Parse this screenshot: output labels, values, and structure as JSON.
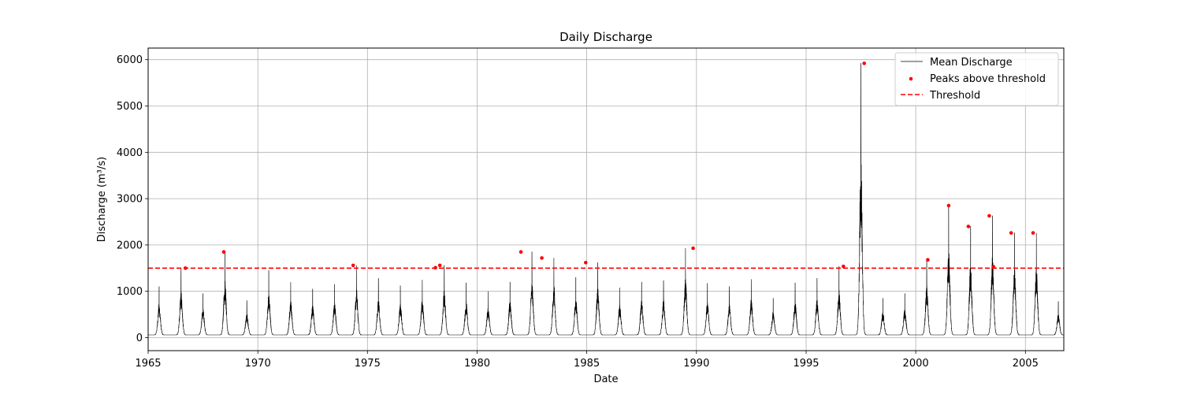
{
  "chart_data": {
    "type": "line",
    "title": "Daily Discharge",
    "xlabel": "Date",
    "ylabel": "Discharge (m³/s)",
    "xlim": [
      1965.0,
      2006.75
    ],
    "ylim": [
      -280,
      6250
    ],
    "xticks": [
      1965,
      1970,
      1975,
      1980,
      1985,
      1990,
      1995,
      2000,
      2005
    ],
    "yticks": [
      0,
      1000,
      2000,
      3000,
      4000,
      5000,
      6000
    ],
    "grid": true,
    "legend_position": "top-right",
    "threshold": 1500,
    "annual_hydrograph": {
      "years": [
        1965,
        1966,
        1967,
        1968,
        1969,
        1970,
        1971,
        1972,
        1973,
        1974,
        1975,
        1976,
        1977,
        1978,
        1979,
        1980,
        1981,
        1982,
        1983,
        1984,
        1985,
        1986,
        1987,
        1988,
        1989,
        1990,
        1991,
        1992,
        1993,
        1994,
        1995,
        1996,
        1997,
        1998,
        1999,
        2000,
        2001,
        2002,
        2003,
        2004,
        2005,
        2006
      ],
      "seasonal_peak": [
        1100,
        1500,
        950,
        1850,
        800,
        1450,
        1200,
        1050,
        1150,
        1560,
        1280,
        1120,
        1250,
        1560,
        1180,
        1000,
        1200,
        1850,
        1720,
        1300,
        1620,
        1080,
        1200,
        1230,
        1930,
        1170,
        1100,
        1260,
        850,
        1180,
        1280,
        1540,
        5920,
        850,
        950,
        1680,
        2850,
        2400,
        2630,
        2260,
        2260,
        780
      ],
      "baseflow": [
        60,
        60,
        60,
        60,
        60,
        60,
        60,
        60,
        60,
        60,
        60,
        60,
        60,
        60,
        60,
        60,
        60,
        60,
        60,
        60,
        60,
        60,
        60,
        60,
        60,
        60,
        60,
        60,
        60,
        60,
        60,
        60,
        60,
        60,
        60,
        60,
        60,
        60,
        60,
        60,
        60,
        60
      ]
    },
    "series": [
      {
        "name": "Mean Discharge",
        "color": "#000000",
        "style": "line"
      },
      {
        "name": "Peaks above threshold",
        "color": "#ff0000",
        "style": "points",
        "x": [
          1966.7,
          1968.45,
          1974.35,
          1978.1,
          1978.3,
          1982.0,
          1982.95,
          1984.95,
          1989.85,
          1996.7,
          1997.65,
          2000.55,
          2001.5,
          2002.4,
          2003.35,
          2003.55,
          2004.35,
          2005.35
        ],
        "y": [
          1500,
          1850,
          1560,
          1510,
          1560,
          1850,
          1720,
          1620,
          1930,
          1540,
          5920,
          1680,
          2850,
          2400,
          2630,
          1530,
          2260,
          2260
        ]
      },
      {
        "name": "Threshold",
        "color": "#ff0000",
        "style": "dashed",
        "y": 1500
      }
    ]
  }
}
